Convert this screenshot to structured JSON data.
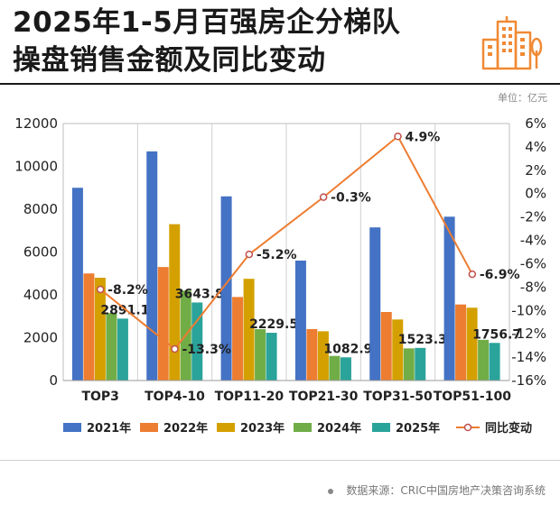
{
  "header": {
    "title_line1": "2025年1-5月百强房企分梯队",
    "title_line2": "操盘销售金额及同比变动",
    "unit_label": "单位：亿元",
    "logo_icon": "city-buildings-icon",
    "logo_color": "#F08A35"
  },
  "chart_data": {
    "type": "bar",
    "categories": [
      "TOP3",
      "TOP4-10",
      "TOP11-20",
      "TOP21-30",
      "TOP31-50",
      "TOP51-100"
    ],
    "series": [
      {
        "name": "2021年",
        "color": "#4472C4",
        "values": [
          9000,
          10700,
          8600,
          5600,
          7150,
          7650
        ]
      },
      {
        "name": "2022年",
        "color": "#ED7D31",
        "values": [
          5000,
          5300,
          3900,
          2400,
          3200,
          3550
        ]
      },
      {
        "name": "2023年",
        "color": "#D4A000",
        "values": [
          4800,
          7300,
          4750,
          2300,
          2850,
          3400
        ]
      },
      {
        "name": "2024年",
        "color": "#70AD47",
        "values": [
          3150,
          4200,
          2400,
          1150,
          1500,
          1900
        ]
      },
      {
        "name": "2025年",
        "color": "#2AA39A",
        "values": [
          2891.1,
          3643.8,
          2229.5,
          1082.9,
          1523.3,
          1756.7
        ]
      }
    ],
    "bar_value_labels": [
      "2891.1",
      "3643.8",
      "2229.5",
      "1082.9",
      "1523.3",
      "1756.7"
    ],
    "line": {
      "name": "同比变动",
      "color": "#ED7D31",
      "values": [
        -8.2,
        -13.3,
        -5.2,
        -0.3,
        4.9,
        -6.9
      ],
      "labels": [
        "-8.2%",
        "-13.3%",
        "-5.2%",
        "-0.3%",
        "4.9%",
        "-6.9%"
      ]
    },
    "y_left": {
      "min": 0,
      "max": 12000,
      "ticks": [
        0,
        2000,
        4000,
        6000,
        8000,
        10000,
        12000
      ]
    },
    "y_right": {
      "min": -16,
      "max": 6,
      "ticks": [
        "6%",
        "4%",
        "2%",
        "0%",
        "-2%",
        "-4%",
        "-6%",
        "-8%",
        "-10%",
        "-12%",
        "-14%",
        "-16%"
      ],
      "tick_values": [
        6,
        4,
        2,
        0,
        -2,
        -4,
        -6,
        -8,
        -10,
        -12,
        -14,
        -16
      ]
    },
    "grid": "vertical",
    "legend_position": "bottom"
  },
  "footer": {
    "source": "数据来源：CRIC中国房地产决策咨询系统"
  }
}
